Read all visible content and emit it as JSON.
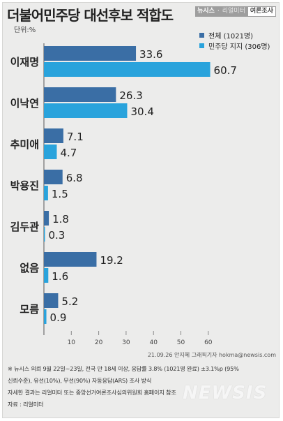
{
  "header": {
    "title": "더불어민주당 대선후보 적합도",
    "badge_brand": "뉴시스",
    "badge_sep": "·",
    "badge_pollster": "리얼미터",
    "badge_tag": "여론조사"
  },
  "unit_label": "단위:%",
  "colors": {
    "series_all": "#3a6ea5",
    "series_dem": "#29a3dc",
    "background": "#ececeb"
  },
  "chart_data": {
    "type": "bar",
    "orientation": "horizontal",
    "categories": [
      "이재명",
      "이낙연",
      "추미애",
      "박용진",
      "김두관",
      "없음",
      "모름"
    ],
    "series": [
      {
        "name": "전체 (1021명)",
        "values": [
          33.6,
          26.3,
          7.1,
          6.8,
          1.8,
          19.2,
          5.2
        ]
      },
      {
        "name": "민주당 지지 (306명)",
        "values": [
          60.7,
          30.4,
          4.7,
          1.5,
          0.3,
          1.6,
          0.9
        ]
      }
    ],
    "value_labels": [
      [
        "33.6",
        "26.3",
        "7.1",
        "6.8",
        "1.8",
        "19.2",
        "5.2"
      ],
      [
        "60.7",
        "30.4",
        "4.7",
        "1.5",
        "0.3",
        "1.6",
        "0.9"
      ]
    ],
    "xticks": [
      "10",
      "20",
      "30",
      "40",
      "50",
      "60"
    ],
    "xlim": [
      0,
      63
    ],
    "grid": false,
    "legend_position": "top-right"
  },
  "notes": {
    "line1": "※ 뉴시스 의뢰 9월 22일~23일, 전국 만 18세 이상, 응답률 3.8% (1021명 완료) ±3.1%p (95%",
    "line2": "신뢰수준), 유선(10%), 무선(90%) 자동응답(ARS) 조사 방식",
    "line3": "자세한 결과는 리얼미터 또는 중앙선거여론조사심의위원회 홈페이지 참조",
    "line4": "자료 : 리얼미터"
  },
  "credit": "21.09.26 안지혜 그래픽기자 hokma@newsis.com",
  "watermark": "NEWSIS"
}
